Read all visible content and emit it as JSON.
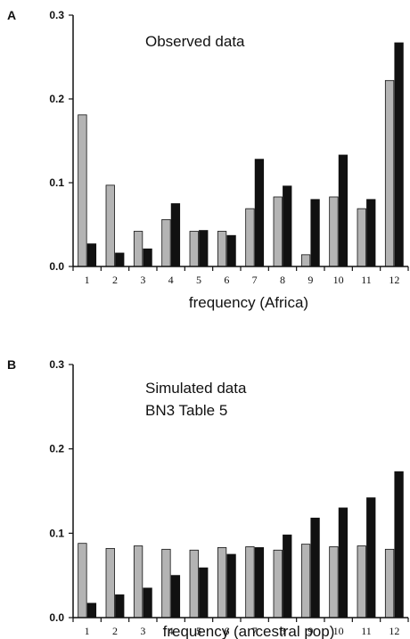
{
  "chart_data": [
    {
      "type": "bar",
      "panel_label": "A",
      "title_lines": [
        "Observed data"
      ],
      "xlabel": "frequency (Africa)",
      "ylabel": "",
      "ylim": [
        0,
        0.3
      ],
      "yticks": [
        "0.0",
        "0.1",
        "0.2",
        "0.3"
      ],
      "categories": [
        "1",
        "2",
        "3",
        "4",
        "5",
        "6",
        "7",
        "8",
        "9",
        "10",
        "11",
        "12"
      ],
      "series": [
        {
          "color": "#b4b4b4",
          "values": [
            0.181,
            0.097,
            0.042,
            0.056,
            0.042,
            0.042,
            0.069,
            0.083,
            0.014,
            0.083,
            0.069,
            0.222
          ]
        },
        {
          "color": "#111111",
          "values": [
            0.027,
            0.016,
            0.021,
            0.075,
            0.043,
            0.037,
            0.128,
            0.096,
            0.08,
            0.133,
            0.08,
            0.267
          ]
        }
      ],
      "grid": false
    },
    {
      "type": "bar",
      "panel_label": "B",
      "title_lines": [
        "Simulated data",
        "BN3 Table 5"
      ],
      "xlabel": "frequency (ancestral pop)",
      "ylabel": "",
      "ylim": [
        0,
        0.3
      ],
      "yticks": [
        "0.0",
        "0.1",
        "0.2",
        "0.3"
      ],
      "categories": [
        "1",
        "2",
        "3",
        "4",
        "5",
        "6",
        "7",
        "8",
        "9",
        "10",
        "11",
        "12"
      ],
      "series": [
        {
          "color": "#b4b4b4",
          "values": [
            0.088,
            0.082,
            0.085,
            0.081,
            0.08,
            0.083,
            0.084,
            0.08,
            0.087,
            0.084,
            0.085,
            0.081
          ]
        },
        {
          "color": "#111111",
          "values": [
            0.017,
            0.027,
            0.035,
            0.05,
            0.059,
            0.075,
            0.083,
            0.098,
            0.118,
            0.13,
            0.142,
            0.173
          ]
        }
      ],
      "grid": false
    }
  ]
}
